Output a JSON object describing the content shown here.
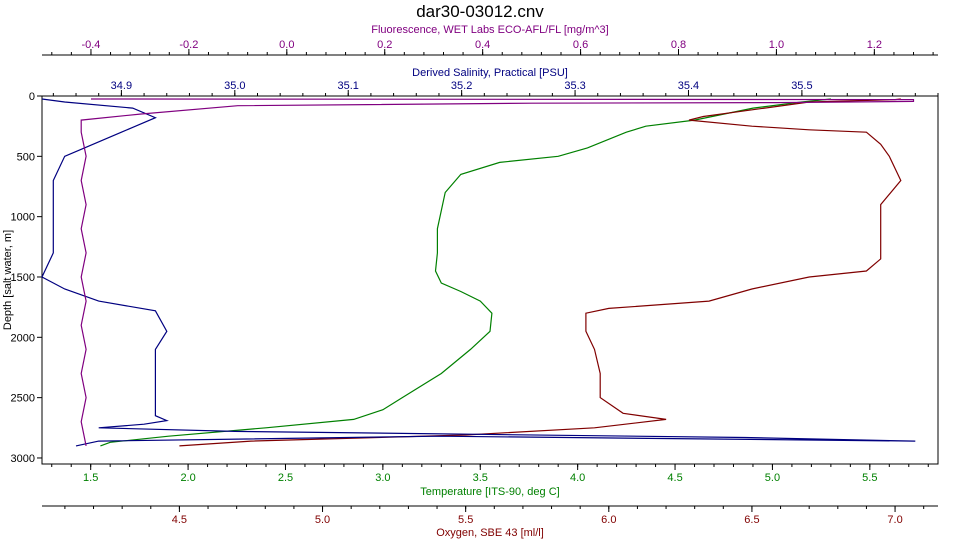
{
  "title": "dar30-03012.cnv",
  "chart_data": {
    "type": "line",
    "title": "dar30-03012.cnv",
    "y_axis": {
      "label": "Depth [salt water, m]",
      "range": [
        0,
        3050
      ],
      "inverted": true,
      "ticks": [
        0,
        500,
        1000,
        1500,
        2000,
        2500,
        3000
      ],
      "color": "#000000"
    },
    "x_axes": [
      {
        "id": "fluor",
        "label": "Fluorescence, WET Labs ECO-AFL/FL [mg/m^3]",
        "position": "top-outer",
        "range": [
          -0.5,
          1.33
        ],
        "ticks": [
          "-0.4",
          "-0.2",
          "0.0",
          "0.2",
          "0.4",
          "0.6",
          "0.8",
          "1.0",
          "1.2"
        ],
        "color": "#800080"
      },
      {
        "id": "sal",
        "label": "Derived Salinity, Practical [PSU]",
        "position": "top-inner",
        "range": [
          34.83,
          35.62
        ],
        "ticks": [
          "34.9",
          "35.0",
          "35.1",
          "35.2",
          "35.3",
          "35.4",
          "35.5"
        ],
        "color": "#000080"
      },
      {
        "id": "temp",
        "label": "Temperature [ITS-90, deg C]",
        "position": "bottom-inner",
        "range": [
          1.25,
          5.85
        ],
        "ticks": [
          "1.5",
          "2.0",
          "2.5",
          "3.0",
          "3.5",
          "4.0",
          "4.5",
          "5.0",
          "5.5"
        ],
        "color": "#008000"
      },
      {
        "id": "oxy",
        "label": "Oxygen, SBE 43 [ml/l]",
        "position": "bottom-outer",
        "range": [
          4.02,
          7.15
        ],
        "ticks": [
          "4.5",
          "5.0",
          "5.5",
          "6.0",
          "6.5",
          "7.0"
        ],
        "color": "#800000"
      }
    ],
    "series": [
      {
        "axis": "temp",
        "color": "#008000",
        "points": [
          [
            1.55,
            2900
          ],
          [
            1.6,
            2870
          ],
          [
            1.9,
            2820
          ],
          [
            2.4,
            2750
          ],
          [
            2.85,
            2680
          ],
          [
            3.0,
            2600
          ],
          [
            3.1,
            2500
          ],
          [
            3.3,
            2300
          ],
          [
            3.45,
            2100
          ],
          [
            3.55,
            1950
          ],
          [
            3.56,
            1800
          ],
          [
            3.5,
            1700
          ],
          [
            3.4,
            1620
          ],
          [
            3.3,
            1550
          ],
          [
            3.27,
            1450
          ],
          [
            3.28,
            1300
          ],
          [
            3.28,
            1100
          ],
          [
            3.3,
            950
          ],
          [
            3.32,
            800
          ],
          [
            3.4,
            650
          ],
          [
            3.6,
            550
          ],
          [
            3.9,
            500
          ],
          [
            4.05,
            430
          ],
          [
            4.25,
            300
          ],
          [
            4.35,
            250
          ],
          [
            4.6,
            200
          ],
          [
            4.9,
            100
          ],
          [
            5.15,
            50
          ],
          [
            5.3,
            25
          ]
        ]
      },
      {
        "axis": "oxy",
        "color": "#800000",
        "points": [
          [
            4.5,
            2900
          ],
          [
            4.75,
            2860
          ],
          [
            5.5,
            2810
          ],
          [
            5.95,
            2750
          ],
          [
            6.2,
            2680
          ],
          [
            6.05,
            2630
          ],
          [
            5.97,
            2500
          ],
          [
            5.97,
            2300
          ],
          [
            5.95,
            2100
          ],
          [
            5.92,
            1950
          ],
          [
            5.92,
            1800
          ],
          [
            6.0,
            1760
          ],
          [
            6.35,
            1700
          ],
          [
            6.5,
            1600
          ],
          [
            6.7,
            1500
          ],
          [
            6.9,
            1450
          ],
          [
            6.95,
            1350
          ],
          [
            6.95,
            1200
          ],
          [
            6.95,
            1050
          ],
          [
            6.95,
            900
          ],
          [
            7.02,
            700
          ],
          [
            6.98,
            500
          ],
          [
            6.95,
            400
          ],
          [
            6.9,
            300
          ],
          [
            6.7,
            280
          ],
          [
            6.5,
            250
          ],
          [
            6.28,
            200
          ],
          [
            6.33,
            170
          ],
          [
            6.7,
            50
          ],
          [
            7.0,
            30
          ],
          [
            7.02,
            25
          ]
        ]
      },
      {
        "axis": "sal",
        "color": "#000080",
        "points": [
          [
            34.86,
            2900
          ],
          [
            34.88,
            2860
          ],
          [
            35.18,
            2820
          ],
          [
            35.6,
            2860
          ],
          [
            35.45,
            2830
          ],
          [
            35.0,
            2780
          ],
          [
            34.88,
            2750
          ],
          [
            34.92,
            2720
          ],
          [
            34.94,
            2690
          ],
          [
            34.93,
            2650
          ],
          [
            34.93,
            2500
          ],
          [
            34.93,
            2300
          ],
          [
            34.93,
            2100
          ],
          [
            34.94,
            1950
          ],
          [
            34.93,
            1780
          ],
          [
            34.88,
            1700
          ],
          [
            34.85,
            1600
          ],
          [
            34.83,
            1500
          ],
          [
            34.84,
            1300
          ],
          [
            34.84,
            1100
          ],
          [
            34.84,
            900
          ],
          [
            34.84,
            700
          ],
          [
            34.85,
            500
          ],
          [
            34.87,
            420
          ],
          [
            34.9,
            300
          ],
          [
            34.93,
            180
          ],
          [
            34.91,
            100
          ],
          [
            34.85,
            50
          ],
          [
            34.83,
            25
          ]
        ]
      },
      {
        "axis": "fluor",
        "color": "#800080",
        "points": [
          [
            -0.41,
            2900
          ],
          [
            -0.42,
            2700
          ],
          [
            -0.41,
            2500
          ],
          [
            -0.42,
            2300
          ],
          [
            -0.41,
            2100
          ],
          [
            -0.42,
            1900
          ],
          [
            -0.41,
            1700
          ],
          [
            -0.42,
            1500
          ],
          [
            -0.41,
            1300
          ],
          [
            -0.42,
            1100
          ],
          [
            -0.41,
            900
          ],
          [
            -0.42,
            700
          ],
          [
            -0.41,
            500
          ],
          [
            -0.42,
            300
          ],
          [
            -0.42,
            200
          ],
          [
            -0.3,
            150
          ],
          [
            -0.1,
            80
          ],
          [
            0.5,
            60
          ],
          [
            1.0,
            55
          ],
          [
            1.28,
            45
          ],
          [
            1.28,
            30
          ],
          [
            -0.4,
            25
          ]
        ]
      }
    ]
  }
}
